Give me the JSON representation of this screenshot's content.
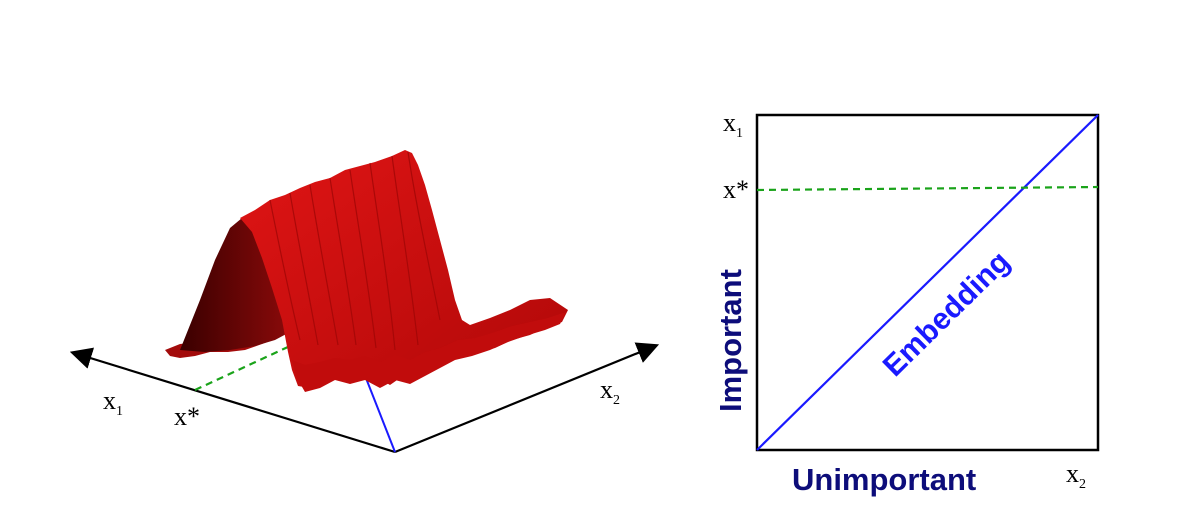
{
  "left_panel": {
    "axis_x1_label": {
      "main": "x",
      "sub": "1"
    },
    "axis_x2_label": {
      "main": "x",
      "sub": "2"
    },
    "xstar_label": "x*",
    "colors": {
      "axis": "#000000",
      "xstar_line": "#1aa31a",
      "embedding_line": "#1a1aff",
      "surface_front": "#d10f0f",
      "surface_shadow": "#4e0000"
    }
  },
  "right_panel": {
    "axis_x1_label": {
      "main": "x",
      "sub": "1"
    },
    "axis_x2_label": {
      "main": "x",
      "sub": "2"
    },
    "xstar_label": "x*",
    "important_label": "Important",
    "unimportant_label": "Unimportant",
    "embedding_label": "Embedding",
    "colors": {
      "frame": "#000000",
      "xstar_line": "#1aa31a",
      "embedding_line": "#1a1aff",
      "text_dark_blue": "#0d0d7a",
      "embedding_text": "#1a1aff"
    }
  }
}
